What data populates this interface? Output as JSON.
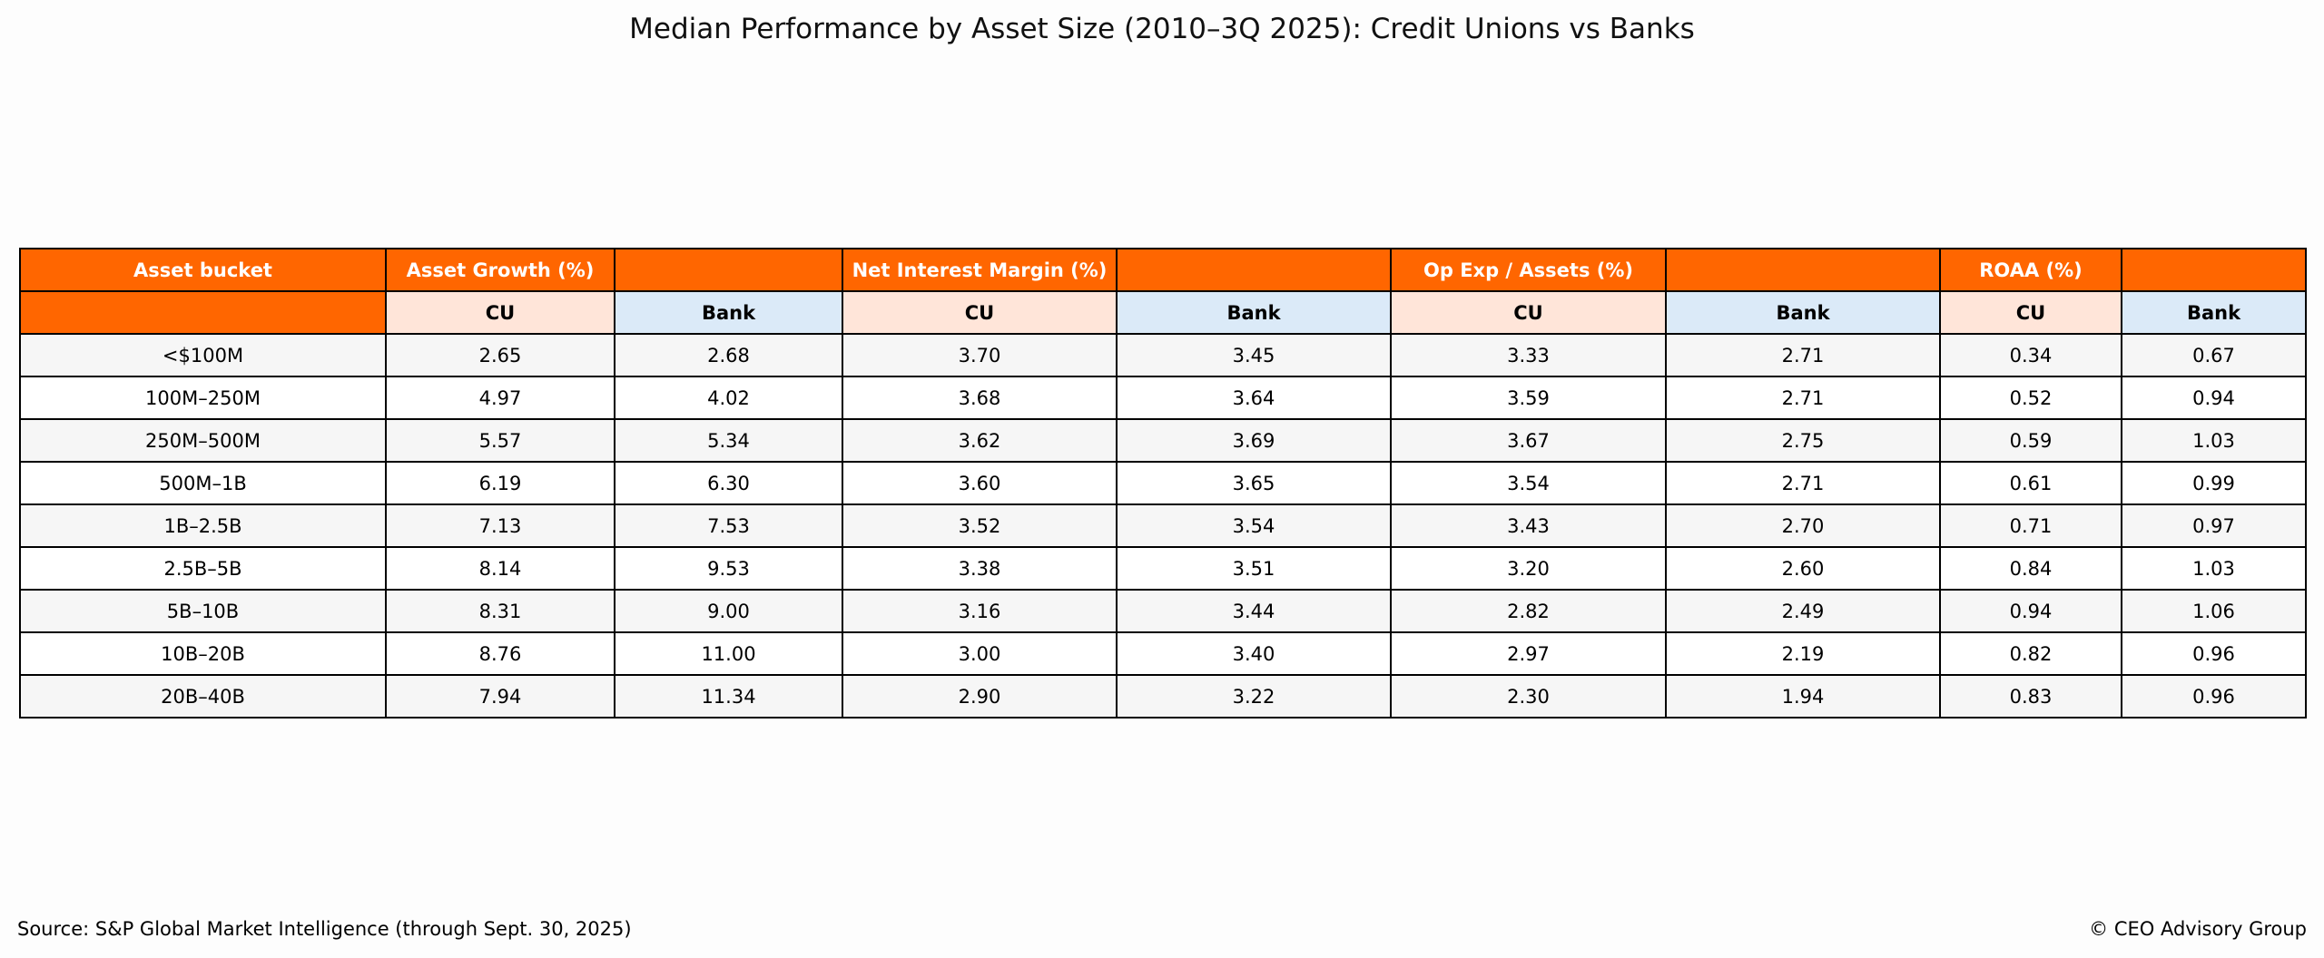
{
  "title": "Median Performance by Asset Size (2010–3Q 2025): Credit Unions vs Banks",
  "table": {
    "corner": "Asset bucket",
    "groups": [
      "Asset Growth (%)",
      "Net Interest Margin (%)",
      "Op Exp / Assets (%)",
      "ROAA (%)"
    ],
    "subheaders": [
      "CU",
      "Bank",
      "CU",
      "Bank",
      "CU",
      "Bank",
      "CU",
      "Bank"
    ],
    "rows": [
      [
        "<$100M",
        "2.65",
        "2.68",
        "3.70",
        "3.45",
        "3.33",
        "2.71",
        "0.34",
        "0.67"
      ],
      [
        "100M–250M",
        "4.97",
        "4.02",
        "3.68",
        "3.64",
        "3.59",
        "2.71",
        "0.52",
        "0.94"
      ],
      [
        "250M–500M",
        "5.57",
        "5.34",
        "3.62",
        "3.69",
        "3.67",
        "2.75",
        "0.59",
        "1.03"
      ],
      [
        "500M–1B",
        "6.19",
        "6.30",
        "3.60",
        "3.65",
        "3.54",
        "2.71",
        "0.61",
        "0.99"
      ],
      [
        "1B–2.5B",
        "7.13",
        "7.53",
        "3.52",
        "3.54",
        "3.43",
        "2.70",
        "0.71",
        "0.97"
      ],
      [
        "2.5B–5B",
        "8.14",
        "9.53",
        "3.38",
        "3.51",
        "3.20",
        "2.60",
        "0.84",
        "1.03"
      ],
      [
        "5B–10B",
        "8.31",
        "9.00",
        "3.16",
        "3.44",
        "2.82",
        "2.49",
        "0.94",
        "1.06"
      ],
      [
        "10B–20B",
        "8.76",
        "11.00",
        "3.00",
        "3.40",
        "2.97",
        "2.19",
        "0.82",
        "0.96"
      ],
      [
        "20B–40B",
        "7.94",
        "11.34",
        "2.90",
        "3.22",
        "2.30",
        "1.94",
        "0.83",
        "0.96"
      ]
    ]
  },
  "source": "Source: S&P Global Market Intelligence (through Sept. 30, 2025)",
  "copyright": "© CEO Advisory Group"
}
